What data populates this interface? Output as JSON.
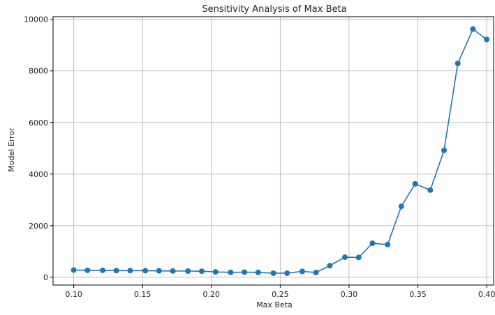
{
  "chart_data": {
    "type": "line",
    "title": "Sensitivity Analysis of Max Beta",
    "xlabel": "Max Beta",
    "ylabel": "Model Error",
    "xlim": [
      0.085,
      0.405
    ],
    "ylim": [
      -300,
      10100
    ],
    "xticks": [
      "0.10",
      "0.15",
      "0.20",
      "0.25",
      "0.30",
      "0.35",
      "0.40"
    ],
    "yticks": [
      "0",
      "2000",
      "4000",
      "6000",
      "8000",
      "10000"
    ],
    "grid": true,
    "series": [
      {
        "color": "#1f77b4",
        "x": [
          0.1,
          0.11,
          0.121,
          0.131,
          0.141,
          0.152,
          0.162,
          0.172,
          0.183,
          0.193,
          0.203,
          0.214,
          0.224,
          0.234,
          0.245,
          0.255,
          0.266,
          0.276,
          0.286,
          0.297,
          0.307,
          0.317,
          0.328,
          0.338,
          0.348,
          0.359,
          0.369,
          0.379,
          0.39,
          0.4
        ],
        "y": [
          280,
          270,
          270,
          260,
          260,
          255,
          250,
          245,
          240,
          235,
          210,
          190,
          200,
          190,
          160,
          160,
          230,
          185,
          450,
          780,
          770,
          1320,
          1270,
          2750,
          3620,
          3380,
          4920,
          8290,
          9620,
          9220
        ]
      }
    ]
  }
}
